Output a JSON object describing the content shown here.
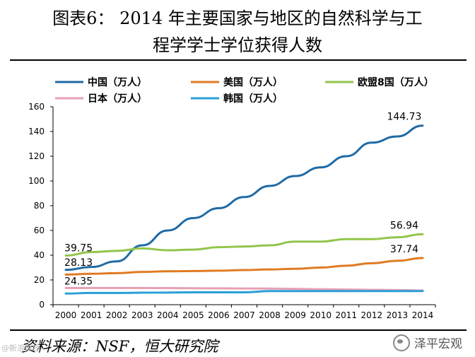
{
  "title": {
    "line1": "图表6：  2014 年主要国家与地区的自然科学与工",
    "line2": "程学学士学位获得人数"
  },
  "source": "资料来源：NSF，恒大研究院",
  "watermark": {
    "right": "泽平宏观",
    "left": "@新浪财经"
  },
  "chart_data": {
    "type": "line",
    "title": "2014 年主要国家与地区的自然科学与工程学学士学位获得人数",
    "xlabel": "",
    "ylabel": "",
    "ylim": [
      0,
      160
    ],
    "yticks": [
      0,
      20,
      40,
      60,
      80,
      100,
      120,
      140,
      160
    ],
    "categories": [
      "2000",
      "2001",
      "2002",
      "2003",
      "2004",
      "2005",
      "2006",
      "2007",
      "2008",
      "2009",
      "2010",
      "2011",
      "2012",
      "2013",
      "2014"
    ],
    "legend_position": "top",
    "series": [
      {
        "name": "中国（万人）",
        "color": "#1f6aa5",
        "values": [
          28.13,
          30.5,
          35,
          48,
          60,
          70,
          78,
          87,
          96,
          104,
          111,
          120,
          131,
          136,
          144.73
        ]
      },
      {
        "name": "美国（万人）",
        "color": "#e07b22",
        "values": [
          24.35,
          25,
          25.5,
          26.5,
          27,
          27.2,
          27.5,
          28,
          28.5,
          29,
          30,
          31.5,
          33.5,
          35.5,
          37.74
        ]
      },
      {
        "name": "欧盟8国（万人）",
        "color": "#92c54b",
        "values": [
          39.75,
          42.5,
          43.5,
          45.5,
          44,
          44.5,
          46.5,
          47,
          48,
          51,
          51,
          53,
          53,
          54.5,
          56.94
        ]
      },
      {
        "name": "日本（万人）",
        "color": "#e8a0b4",
        "values": [
          13.5,
          13.5,
          13.5,
          13.5,
          13.4,
          13.3,
          13.2,
          13.1,
          13,
          12.8,
          12.5,
          12.3,
          12,
          11.8,
          11.5
        ]
      },
      {
        "name": "韩国（万人）",
        "color": "#2a9fd6",
        "values": [
          9,
          9.5,
          9.5,
          9.7,
          9.8,
          10,
          10,
          10,
          11,
          11,
          11,
          11,
          11,
          11,
          11
        ]
      }
    ],
    "annotations": [
      {
        "series": 0,
        "index": 0,
        "text": "28.13"
      },
      {
        "series": 0,
        "index": 14,
        "text": "144.73"
      },
      {
        "series": 1,
        "index": 0,
        "text": "24.35"
      },
      {
        "series": 1,
        "index": 14,
        "text": "37.74"
      },
      {
        "series": 2,
        "index": 0,
        "text": "39.75"
      },
      {
        "series": 2,
        "index": 14,
        "text": "56.94"
      }
    ]
  }
}
